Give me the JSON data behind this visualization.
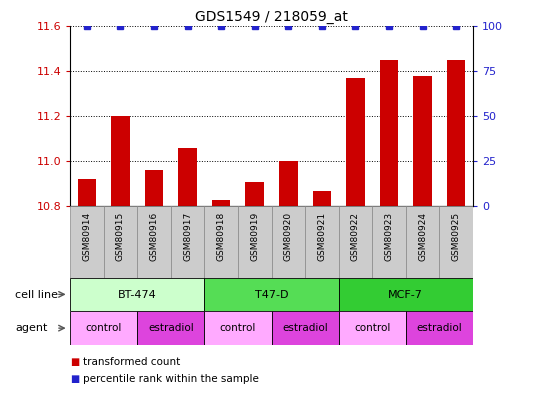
{
  "title": "GDS1549 / 218059_at",
  "samples": [
    "GSM80914",
    "GSM80915",
    "GSM80916",
    "GSM80917",
    "GSM80918",
    "GSM80919",
    "GSM80920",
    "GSM80921",
    "GSM80922",
    "GSM80923",
    "GSM80924",
    "GSM80925"
  ],
  "bar_values": [
    10.92,
    11.2,
    10.96,
    11.06,
    10.83,
    10.91,
    11.0,
    10.87,
    11.37,
    11.45,
    11.38,
    11.45
  ],
  "percentile_values": [
    100,
    100,
    100,
    100,
    100,
    100,
    100,
    100,
    100,
    100,
    100,
    100
  ],
  "bar_color": "#cc0000",
  "percentile_color": "#2222cc",
  "ylim_left": [
    10.8,
    11.6
  ],
  "ylim_right": [
    0,
    100
  ],
  "yticks_left": [
    10.8,
    11.0,
    11.2,
    11.4,
    11.6
  ],
  "yticks_right": [
    0,
    25,
    50,
    75,
    100
  ],
  "cell_lines": [
    {
      "label": "BT-474",
      "start": 0,
      "end": 4,
      "color": "#ccffcc"
    },
    {
      "label": "T47-D",
      "start": 4,
      "end": 8,
      "color": "#55dd55"
    },
    {
      "label": "MCF-7",
      "start": 8,
      "end": 12,
      "color": "#33cc33"
    }
  ],
  "agents": [
    {
      "label": "control",
      "start": 0,
      "end": 2,
      "color": "#ffaaff"
    },
    {
      "label": "estradiol",
      "start": 2,
      "end": 4,
      "color": "#dd44dd"
    },
    {
      "label": "control",
      "start": 4,
      "end": 6,
      "color": "#ffaaff"
    },
    {
      "label": "estradiol",
      "start": 6,
      "end": 8,
      "color": "#dd44dd"
    },
    {
      "label": "control",
      "start": 8,
      "end": 10,
      "color": "#ffaaff"
    },
    {
      "label": "estradiol",
      "start": 10,
      "end": 12,
      "color": "#dd44dd"
    }
  ],
  "legend_bar_label": "transformed count",
  "legend_percentile_label": "percentile rank within the sample",
  "cell_line_label": "cell line",
  "agent_label": "agent",
  "tick_label_color_left": "#cc0000",
  "tick_label_color_right": "#2222cc",
  "sample_bg_color": "#cccccc",
  "sample_border_color": "#888888"
}
